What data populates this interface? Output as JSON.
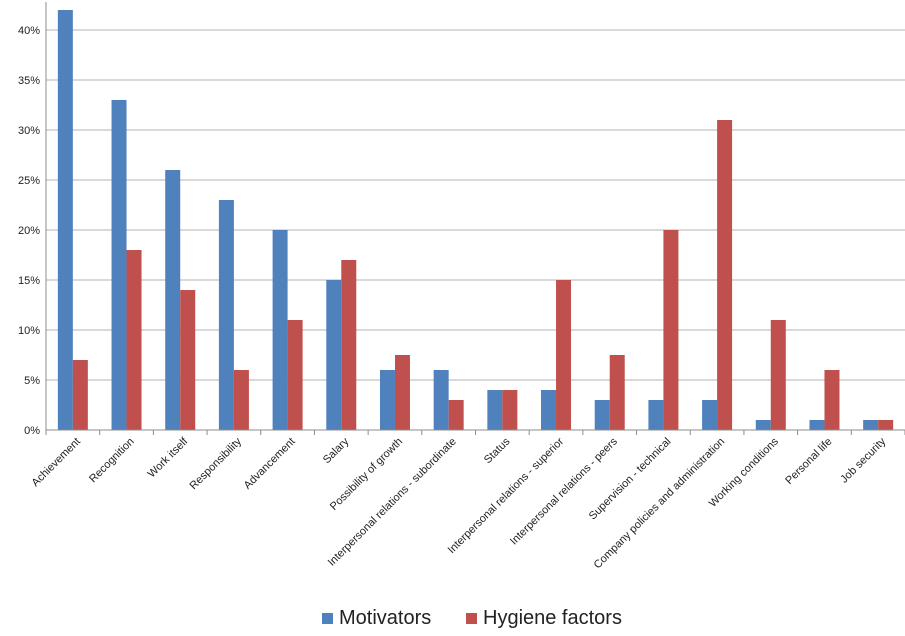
{
  "chart_data": {
    "type": "bar",
    "categories": [
      "Achievement",
      "Recognition",
      "Work itself",
      "Responsibility",
      "Advancement",
      "Salary",
      "Possibility of growth",
      "Interpersonal relations - subordinate",
      "Status",
      "Interpersonal relations - superior",
      "Interpersonal relations - peers",
      "Supervision - technical",
      "Company policies and administration",
      "Working conditions",
      "Personal life",
      "Job security"
    ],
    "series": [
      {
        "name": "Motivators",
        "color": "#4f81bd",
        "values": [
          42,
          33,
          26,
          23,
          20,
          15,
          6,
          6,
          4,
          4,
          3,
          3,
          3,
          1,
          1,
          1
        ]
      },
      {
        "name": "Hygiene factors",
        "color": "#c0504d",
        "values": [
          7,
          18,
          14,
          6,
          11,
          17,
          7.5,
          3,
          4,
          15,
          7.5,
          20,
          31,
          11,
          6,
          1
        ]
      }
    ],
    "yticks": [
      "0%",
      "5%",
      "10%",
      "15%",
      "20%",
      "25%",
      "30%",
      "35%",
      "40%"
    ],
    "ylim": [
      0,
      40
    ],
    "grid": true,
    "legend_position": "bottom"
  }
}
